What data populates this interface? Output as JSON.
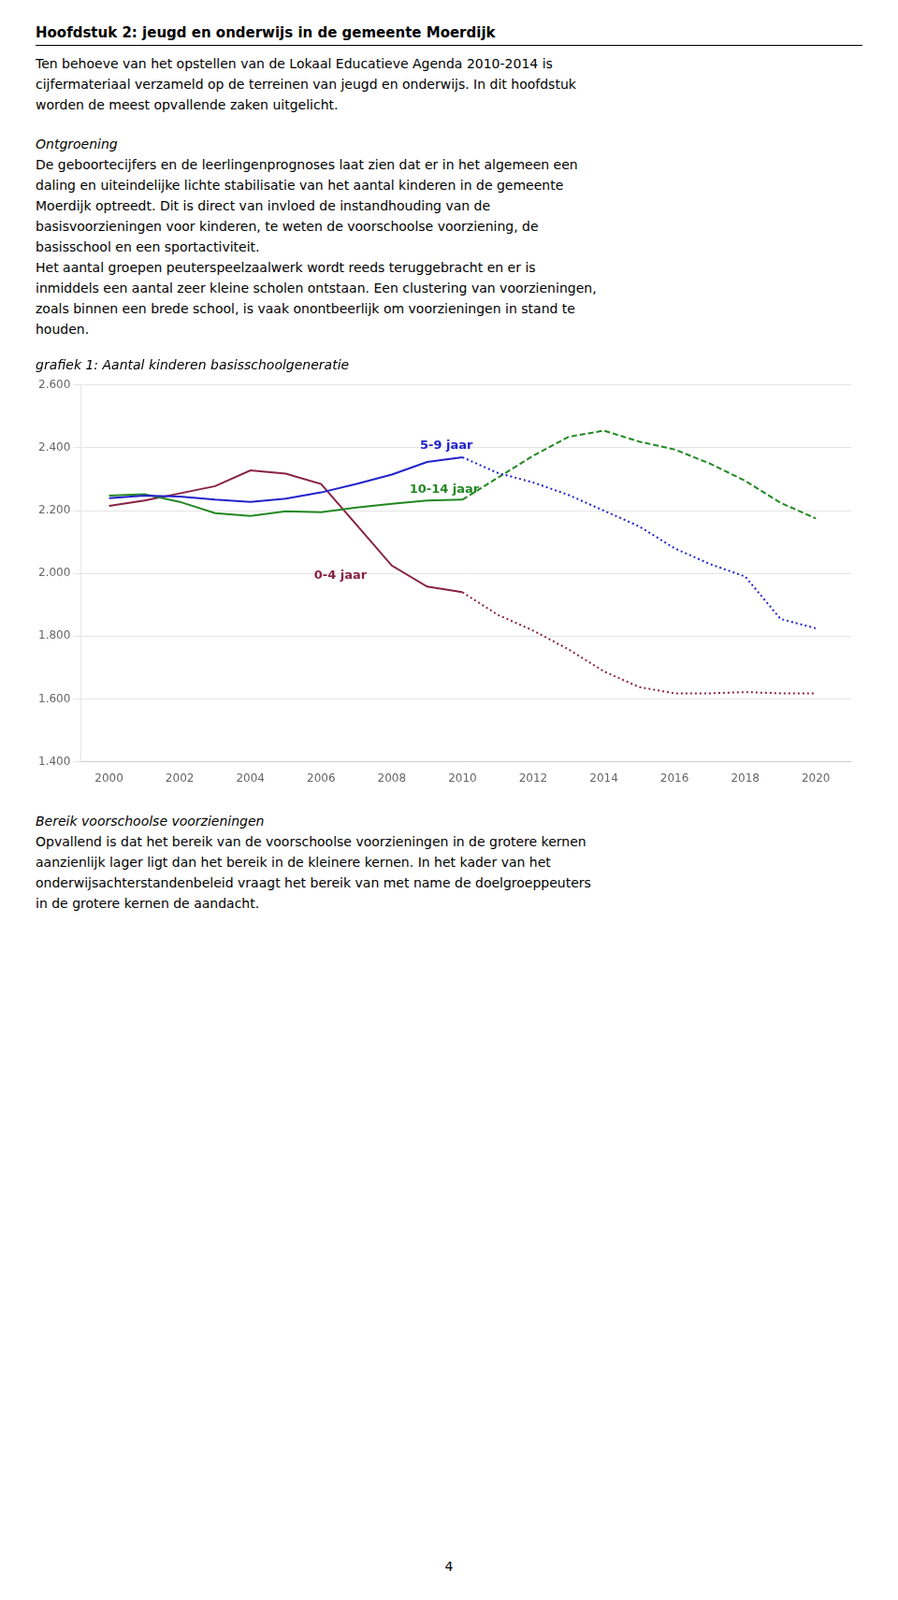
{
  "heading": "Hoofdstuk 2: jeugd en onderwijs in de gemeente Moerdijk",
  "sections_before": [
    {
      "lines": [
        "Ten behoeve van het opstellen van de Lokaal Educatieve Agenda 2010-2014 is",
        "cijfermateriaal verzameld op de terreinen van jeugd en onderwijs. In dit hoofdstuk",
        "worden de meest opvallende zaken uitgelicht."
      ]
    },
    {
      "title": "Ontgroening",
      "lines": [
        "De geboortecijfers en de leerlingenprognoses laat zien dat er in het algemeen een",
        "daling en uiteindelijke lichte stabilisatie van het aantal kinderen in de gemeente",
        "Moerdijk optreedt. Dit is direct van invloed de instandhouding van de",
        "basisvoorzieningen voor kinderen, te weten de voorschoolse voorziening, de",
        "basisschool en een sportactiviteit.",
        "Het aantal groepen peuterspeelzaalwerk wordt reeds teruggebracht en er is",
        "inmiddels een aantal zeer kleine scholen ontstaan. Een clustering van voorzieningen,",
        "zoals binnen een brede school, is vaak onontbeerlijk om voorzieningen in stand te",
        "houden."
      ]
    }
  ],
  "chart_data": {
    "type": "line",
    "title": "grafiek 1: Aantal kinderen basisschoolgeneratie",
    "xlim": [
      1999.2,
      2021
    ],
    "xticks": [
      2000,
      2002,
      2004,
      2006,
      2008,
      2010,
      2012,
      2014,
      2016,
      2018,
      2020
    ],
    "ylim": [
      1400,
      2600
    ],
    "yticks": [
      {
        "value": 1400,
        "label": "1.400"
      },
      {
        "value": 1600,
        "label": "1.600"
      },
      {
        "value": 1800,
        "label": "1.800"
      },
      {
        "value": 2000,
        "label": "2.000"
      },
      {
        "value": 2200,
        "label": "2.200"
      },
      {
        "value": 2400,
        "label": "2.400"
      },
      {
        "value": 2600,
        "label": "2.600"
      }
    ],
    "grid": "y",
    "series": [
      {
        "name": "5-9 jaar",
        "color": "#2222cc",
        "line_style": "solid",
        "x": [
          2000,
          2001,
          2002,
          2003,
          2004,
          2005,
          2006,
          2007,
          2008,
          2009,
          2010
        ],
        "values": [
          2240,
          2248,
          2245,
          2235,
          2228,
          2238,
          2258,
          2285,
          2315,
          2355,
          2370
        ]
      },
      {
        "name": "5-9 jaar",
        "color": "#2222cc",
        "line_style": "dotted",
        "x": [
          2010,
          2011,
          2012,
          2013,
          2014,
          2015,
          2016,
          2017,
          2018,
          2019,
          2020
        ],
        "values": [
          2370,
          2320,
          2290,
          2250,
          2200,
          2150,
          2080,
          2030,
          1990,
          1855,
          1825
        ]
      },
      {
        "name": "10-14 jaar",
        "color": "#228822",
        "line_style": "solid",
        "x": [
          2000,
          2001,
          2002,
          2003,
          2004,
          2005,
          2006,
          2007,
          2008,
          2009,
          2010
        ],
        "values": [
          2248,
          2252,
          2228,
          2192,
          2183,
          2198,
          2195,
          2210,
          2222,
          2232,
          2235
        ]
      },
      {
        "name": "10-14 jaar",
        "color": "#228822",
        "line_style": "dashed",
        "x": [
          2010,
          2011,
          2012,
          2013,
          2014,
          2015,
          2016,
          2017,
          2018,
          2019,
          2020
        ],
        "values": [
          2235,
          2305,
          2375,
          2435,
          2455,
          2420,
          2395,
          2350,
          2295,
          2225,
          2175
        ]
      },
      {
        "name": "0-4 jaar",
        "color": "#882244",
        "line_style": "solid",
        "x": [
          2000,
          2001,
          2002,
          2003,
          2004,
          2005,
          2006,
          2007,
          2008,
          2009,
          2010
        ],
        "values": [
          2215,
          2232,
          2255,
          2278,
          2328,
          2318,
          2285,
          2155,
          2025,
          1958,
          1940
        ]
      },
      {
        "name": "0-4 jaar",
        "color": "#882244",
        "line_style": "dotted",
        "x": [
          2010,
          2011,
          2012,
          2013,
          2014,
          2015,
          2016,
          2017,
          2018,
          2019,
          2020
        ],
        "values": [
          1940,
          1868,
          1818,
          1758,
          1688,
          1638,
          1618,
          1618,
          1622,
          1618,
          1618
        ]
      }
    ],
    "annotations": [
      {
        "text": "5-9 jaar",
        "x": 2008.8,
        "y": 2388,
        "color": "#2222cc"
      },
      {
        "text": "10-14 jaar",
        "x": 2008.5,
        "y": 2248,
        "color": "#228822"
      },
      {
        "text": "0-4 jaar",
        "x": 2005.8,
        "y": 1972,
        "color": "#882244"
      }
    ]
  },
  "sections_after": [
    {
      "title": "Bereik voorschoolse voorzieningen",
      "lines": [
        "Opvallend is dat het bereik van de voorschoolse voorzieningen in de grotere kernen",
        "aanzienlijk lager ligt dan het bereik in de kleinere kernen. In het kader van het",
        "onderwijsachterstandenbeleid vraagt het bereik van met name de doelgroeppeuters",
        "in de grotere kernen de aandacht."
      ]
    }
  ],
  "page_number": "4"
}
